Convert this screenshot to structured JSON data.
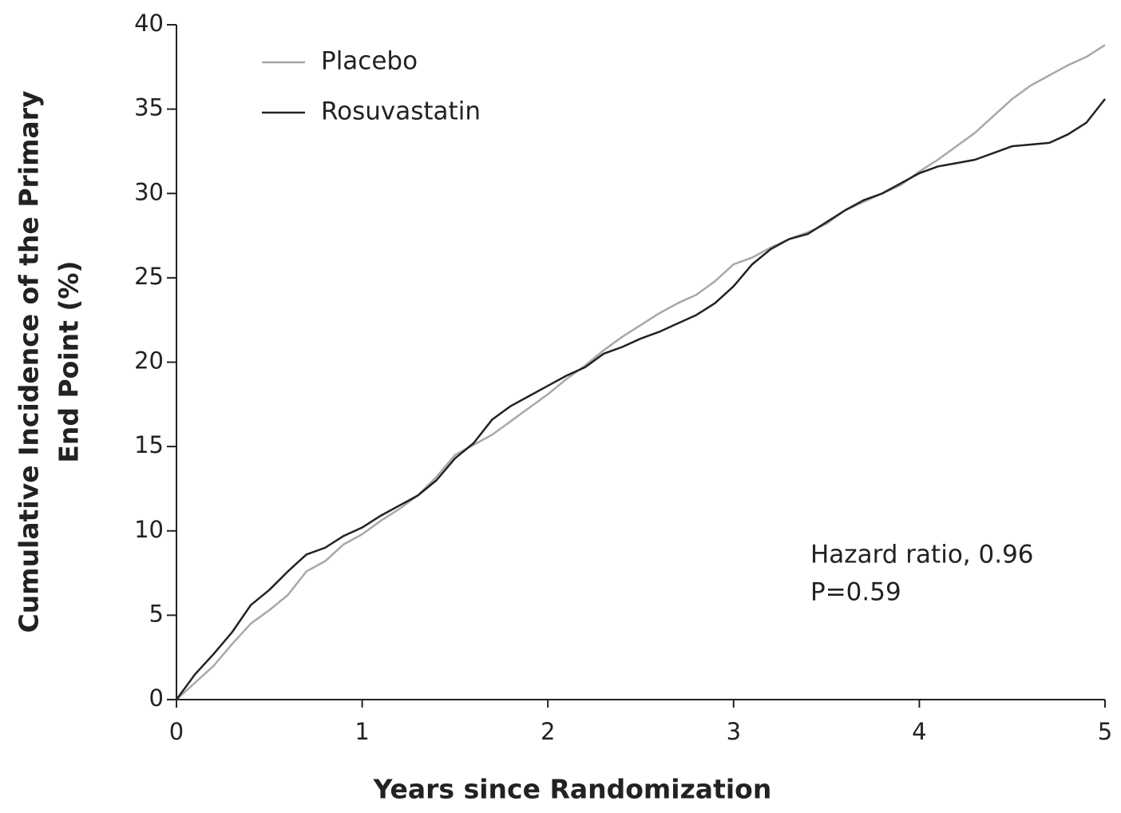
{
  "chart_data": {
    "type": "line",
    "y_label": [
      "Cumulative Incidence of the Primary",
      "End Point (%)"
    ],
    "x_label": "Years since Randomization",
    "annotations": [
      "Hazard ratio, 0.96",
      "P=0.59"
    ],
    "x": [
      0,
      0.1,
      0.2,
      0.3,
      0.4,
      0.5,
      0.6,
      0.7,
      0.8,
      0.9,
      1.0,
      1.1,
      1.2,
      1.3,
      1.4,
      1.5,
      1.6,
      1.7,
      1.8,
      1.9,
      2.0,
      2.1,
      2.2,
      2.3,
      2.4,
      2.5,
      2.6,
      2.7,
      2.8,
      2.9,
      3.0,
      3.1,
      3.2,
      3.3,
      3.4,
      3.5,
      3.6,
      3.7,
      3.8,
      3.9,
      4.0,
      4.1,
      4.2,
      4.3,
      4.4,
      4.5,
      4.6,
      4.7,
      4.8,
      4.9,
      5.0
    ],
    "series": [
      {
        "name": "Placebo",
        "color": "#a8a8a8",
        "values": [
          0,
          1,
          2,
          3.3,
          4.5,
          5.3,
          6.2,
          7.6,
          8.2,
          9.2,
          9.8,
          10.6,
          11.3,
          12.1,
          13.2,
          14.5,
          15.1,
          15.7,
          16.5,
          17.3,
          18.1,
          19.0,
          19.8,
          20.7,
          21.5,
          22.2,
          22.9,
          23.5,
          24.0,
          24.8,
          25.8,
          26.2,
          26.8,
          27.3,
          27.7,
          28.2,
          29.0,
          29.5,
          30.0,
          30.5,
          31.3,
          32.0,
          32.8,
          33.6,
          34.6,
          35.6,
          36.4,
          37.0,
          37.6,
          38.1,
          38.8
        ]
      },
      {
        "name": "Rosuvastatin",
        "color": "#222222",
        "values": [
          0,
          1.5,
          2.7,
          4.0,
          5.6,
          6.5,
          7.6,
          8.6,
          9.0,
          9.7,
          10.2,
          10.9,
          11.5,
          12.1,
          13.0,
          14.3,
          15.2,
          16.6,
          17.4,
          18.0,
          18.6,
          19.2,
          19.7,
          20.5,
          20.9,
          21.4,
          21.8,
          22.3,
          22.8,
          23.5,
          24.5,
          25.8,
          26.7,
          27.3,
          27.6,
          28.3,
          29.0,
          29.6,
          30.0,
          30.6,
          31.2,
          31.6,
          31.8,
          32.0,
          32.4,
          32.8,
          32.9,
          33.0,
          33.5,
          34.2,
          35.6
        ]
      }
    ],
    "xlim": [
      0,
      5
    ],
    "xticks": [
      0,
      1,
      2,
      3,
      4,
      5
    ],
    "ylim": [
      0,
      40
    ],
    "yticks": [
      0,
      5,
      10,
      15,
      20,
      25,
      30,
      35,
      40
    ],
    "legend": "upper left",
    "grid": false
  }
}
